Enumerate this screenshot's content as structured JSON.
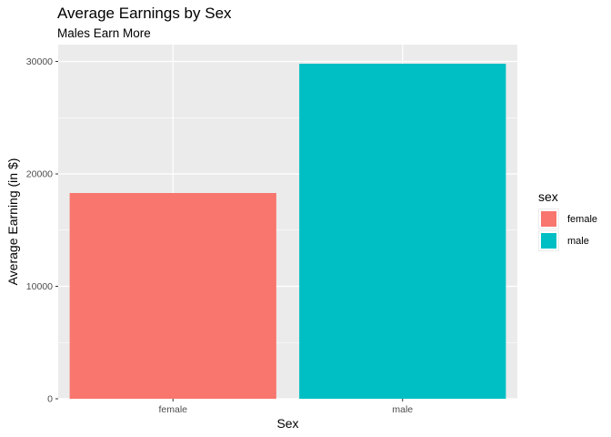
{
  "chart_data": {
    "type": "bar",
    "title": "Average Earnings by Sex",
    "subtitle": "Males Earn More",
    "xlabel": "Sex",
    "ylabel": "Average Earning (in $)",
    "categories": [
      "female",
      "male"
    ],
    "values": [
      18300,
      29800
    ],
    "colors": [
      "#F8766D",
      "#00BFC4"
    ],
    "ylim": [
      0,
      31500
    ],
    "yticks": [
      0,
      10000,
      20000,
      30000
    ],
    "grid": true,
    "legend": {
      "title": "sex",
      "placement": "right",
      "items": [
        {
          "label": "female",
          "color": "#F8766D"
        },
        {
          "label": "male",
          "color": "#00BFC4"
        }
      ]
    }
  }
}
